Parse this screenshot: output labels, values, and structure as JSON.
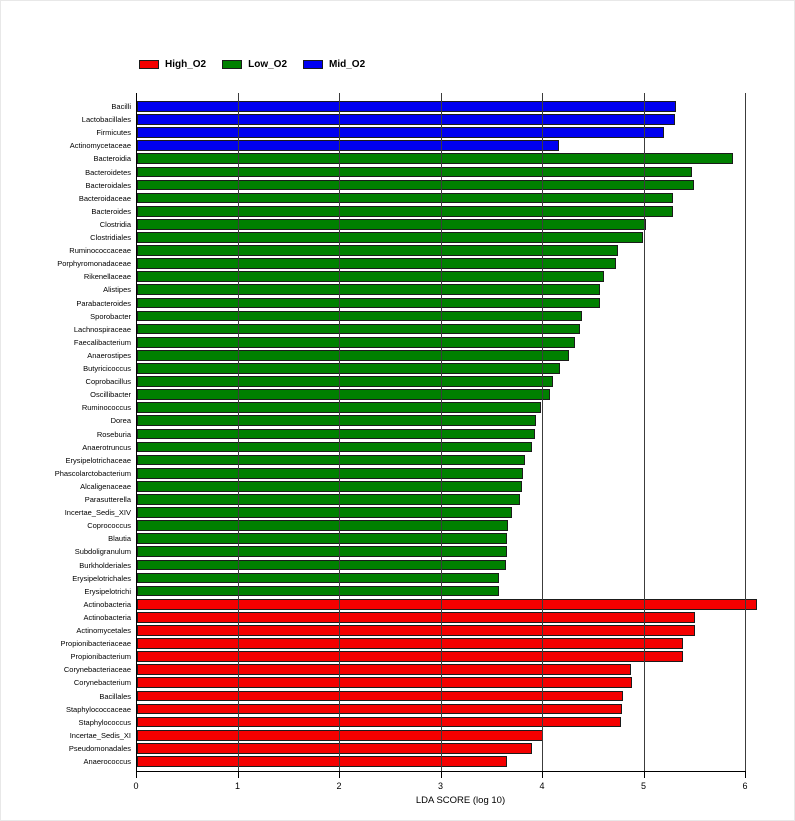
{
  "chart_data": {
    "type": "bar",
    "orientation": "horizontal",
    "xlabel": "LDA SCORE (log 10)",
    "xlim": [
      0,
      6
    ],
    "xticks": [
      "0",
      "1",
      "2",
      "3",
      "4",
      "5",
      "6"
    ],
    "grid": "vertical lines at integers, drawn over bars",
    "legend_position": "top",
    "legend": [
      {
        "label": "High_O2",
        "color": "#f40000"
      },
      {
        "label": "Low_O2",
        "color": "#008000"
      },
      {
        "label": "Mid_O2",
        "color": "#0000f0"
      }
    ],
    "bars": [
      {
        "label": "Bacilli",
        "value": 5.31,
        "group": "Mid_O2"
      },
      {
        "label": "Lactobacillales",
        "value": 5.3,
        "group": "Mid_O2"
      },
      {
        "label": "Firmicutes",
        "value": 5.19,
        "group": "Mid_O2"
      },
      {
        "label": "Actinomycetaceae",
        "value": 4.16,
        "group": "Mid_O2"
      },
      {
        "label": "Bacteroidia",
        "value": 5.87,
        "group": "Low_O2"
      },
      {
        "label": "Bacteroidetes",
        "value": 5.47,
        "group": "Low_O2"
      },
      {
        "label": "Bacteroidales",
        "value": 5.49,
        "group": "Low_O2"
      },
      {
        "label": "Bacteroidaceae",
        "value": 5.28,
        "group": "Low_O2"
      },
      {
        "label": "Bacteroides",
        "value": 5.28,
        "group": "Low_O2"
      },
      {
        "label": "Clostridia",
        "value": 5.01,
        "group": "Low_O2"
      },
      {
        "label": "Clostridiales",
        "value": 4.99,
        "group": "Low_O2"
      },
      {
        "label": "Ruminococcaceae",
        "value": 4.74,
        "group": "Low_O2"
      },
      {
        "label": "Porphyromonadaceae",
        "value": 4.72,
        "group": "Low_O2"
      },
      {
        "label": "Rikenellaceae",
        "value": 4.6,
        "group": "Low_O2"
      },
      {
        "label": "Alistipes",
        "value": 4.56,
        "group": "Low_O2"
      },
      {
        "label": "Parabacteroides",
        "value": 4.56,
        "group": "Low_O2"
      },
      {
        "label": "Sporobacter",
        "value": 4.38,
        "group": "Low_O2"
      },
      {
        "label": "Lachnospiraceae",
        "value": 4.36,
        "group": "Low_O2"
      },
      {
        "label": "Faecalibacterium",
        "value": 4.32,
        "group": "Low_O2"
      },
      {
        "label": "Anaerostipes",
        "value": 4.26,
        "group": "Low_O2"
      },
      {
        "label": "Butyricicoccus",
        "value": 4.17,
        "group": "Low_O2"
      },
      {
        "label": "Coprobacillus",
        "value": 4.1,
        "group": "Low_O2"
      },
      {
        "label": "Oscillibacter",
        "value": 4.07,
        "group": "Low_O2"
      },
      {
        "label": "Ruminococcus",
        "value": 3.98,
        "group": "Low_O2"
      },
      {
        "label": "Dorea",
        "value": 3.93,
        "group": "Low_O2"
      },
      {
        "label": "Roseburia",
        "value": 3.92,
        "group": "Low_O2"
      },
      {
        "label": "Anaerotruncus",
        "value": 3.89,
        "group": "Low_O2"
      },
      {
        "label": "Erysipelotrichaceae",
        "value": 3.82,
        "group": "Low_O2"
      },
      {
        "label": "Phascolarctobacterium",
        "value": 3.8,
        "group": "Low_O2"
      },
      {
        "label": "Alcaligenaceae",
        "value": 3.79,
        "group": "Low_O2"
      },
      {
        "label": "Parasutterella",
        "value": 3.77,
        "group": "Low_O2"
      },
      {
        "label": "Incertae_Sedis_XIV",
        "value": 3.69,
        "group": "Low_O2"
      },
      {
        "label": "Coprococcus",
        "value": 3.66,
        "group": "Low_O2"
      },
      {
        "label": "Blautia",
        "value": 3.65,
        "group": "Low_O2"
      },
      {
        "label": "Subdoligranulum",
        "value": 3.65,
        "group": "Low_O2"
      },
      {
        "label": "Burkholderiales",
        "value": 3.64,
        "group": "Low_O2"
      },
      {
        "label": "Erysipelotrichales",
        "value": 3.57,
        "group": "Low_O2"
      },
      {
        "label": "Erysipelotrichi",
        "value": 3.57,
        "group": "Low_O2"
      },
      {
        "label": "Actinobacteria",
        "value": 6.11,
        "group": "High_O2"
      },
      {
        "label": "Actinobacteria",
        "value": 5.5,
        "group": "High_O2"
      },
      {
        "label": "Actinomycetales",
        "value": 5.5,
        "group": "High_O2"
      },
      {
        "label": "Propionibacteriaceae",
        "value": 5.38,
        "group": "High_O2"
      },
      {
        "label": "Propionibacterium",
        "value": 5.38,
        "group": "High_O2"
      },
      {
        "label": "Corynebacteriaceae",
        "value": 4.87,
        "group": "High_O2"
      },
      {
        "label": "Corynebacterium",
        "value": 4.88,
        "group": "High_O2"
      },
      {
        "label": "Bacillales",
        "value": 4.79,
        "group": "High_O2"
      },
      {
        "label": "Staphylococcaceae",
        "value": 4.78,
        "group": "High_O2"
      },
      {
        "label": "Staphylococcus",
        "value": 4.77,
        "group": "High_O2"
      },
      {
        "label": "Incertae_Sedis_XI",
        "value": 4.0,
        "group": "High_O2"
      },
      {
        "label": "Pseudomonadales",
        "value": 3.89,
        "group": "High_O2"
      },
      {
        "label": "Anaerococcus",
        "value": 3.65,
        "group": "High_O2"
      }
    ]
  }
}
